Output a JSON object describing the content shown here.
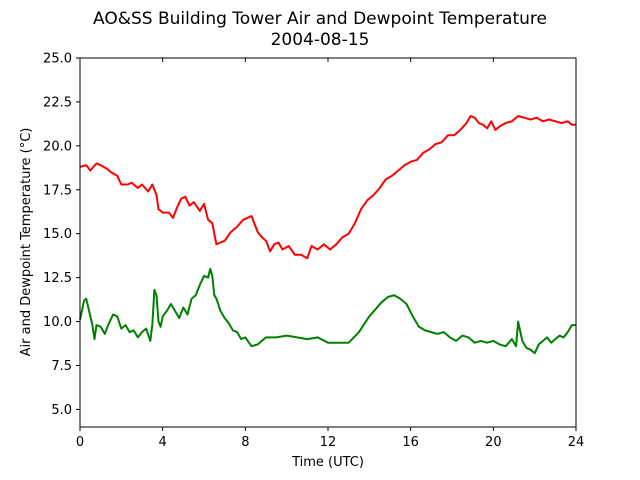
{
  "chart_data": {
    "type": "line",
    "title": "AO&SS Building Tower Air and Dewpoint Temperature",
    "subtitle": "2004-08-15",
    "xlabel": "Time (UTC)",
    "ylabel": "Air and Dewpoint Temperature (°C)",
    "xlim": [
      0,
      24
    ],
    "ylim": [
      4.0,
      25.0
    ],
    "x_ticks": [
      0,
      4,
      8,
      12,
      16,
      20,
      24
    ],
    "x_tick_labels": [
      "0",
      "4",
      "8",
      "12",
      "16",
      "20",
      "24"
    ],
    "y_ticks": [
      5.0,
      7.5,
      10.0,
      12.5,
      15.0,
      17.5,
      20.0,
      22.5,
      25.0
    ],
    "y_tick_labels": [
      "5.0",
      "7.5",
      "10.0",
      "12.5",
      "15.0",
      "17.5",
      "20.0",
      "22.5",
      "25.0"
    ],
    "grid": false,
    "legend": "none",
    "series": [
      {
        "color": "#ff0000",
        "x": [
          0,
          0.3,
          0.5,
          0.8,
          1.0,
          1.3,
          1.5,
          1.8,
          2.0,
          2.3,
          2.5,
          2.8,
          3.0,
          3.3,
          3.5,
          3.7,
          3.8,
          4.0,
          4.3,
          4.5,
          4.7,
          4.9,
          5.1,
          5.3,
          5.5,
          5.8,
          6.0,
          6.2,
          6.4,
          6.6,
          6.8,
          7.0,
          7.3,
          7.6,
          7.9,
          8.1,
          8.3,
          8.6,
          8.8,
          9.0,
          9.2,
          9.4,
          9.6,
          9.8,
          10.1,
          10.4,
          10.7,
          11.0,
          11.2,
          11.5,
          11.8,
          12.1,
          12.4,
          12.7,
          13.0,
          13.3,
          13.6,
          13.9,
          14.2,
          14.5,
          14.8,
          15.1,
          15.4,
          15.7,
          16.0,
          16.3,
          16.6,
          16.9,
          17.2,
          17.5,
          17.8,
          18.1,
          18.4,
          18.7,
          18.9,
          19.1,
          19.3,
          19.5,
          19.7,
          19.9,
          20.1,
          20.3,
          20.6,
          20.9,
          21.2,
          21.5,
          21.8,
          22.1,
          22.4,
          22.7,
          23.0,
          23.3,
          23.6,
          23.8,
          24.0
        ],
        "values": [
          18.8,
          18.9,
          18.6,
          19.0,
          18.9,
          18.7,
          18.5,
          18.3,
          17.8,
          17.8,
          17.9,
          17.6,
          17.8,
          17.4,
          17.8,
          17.2,
          16.4,
          16.2,
          16.2,
          15.9,
          16.5,
          17.0,
          17.1,
          16.6,
          16.8,
          16.3,
          16.7,
          15.8,
          15.6,
          14.4,
          14.5,
          14.6,
          15.1,
          15.4,
          15.8,
          15.9,
          16.0,
          15.1,
          14.8,
          14.6,
          14.0,
          14.4,
          14.5,
          14.1,
          14.3,
          13.8,
          13.8,
          13.6,
          14.3,
          14.1,
          14.4,
          14.1,
          14.4,
          14.8,
          15.0,
          15.6,
          16.4,
          16.9,
          17.2,
          17.6,
          18.1,
          18.3,
          18.6,
          18.9,
          19.1,
          19.2,
          19.6,
          19.8,
          20.1,
          20.2,
          20.6,
          20.6,
          20.9,
          21.3,
          21.7,
          21.6,
          21.3,
          21.2,
          21.0,
          21.4,
          20.9,
          21.1,
          21.3,
          21.4,
          21.7,
          21.6,
          21.5,
          21.6,
          21.4,
          21.5,
          21.4,
          21.3,
          21.4,
          21.2,
          21.2
        ]
      },
      {
        "color": "#008000",
        "x": [
          0,
          0.2,
          0.3,
          0.4,
          0.6,
          0.7,
          0.8,
          1.0,
          1.2,
          1.4,
          1.6,
          1.8,
          2.0,
          2.2,
          2.4,
          2.6,
          2.8,
          3.0,
          3.2,
          3.4,
          3.5,
          3.6,
          3.7,
          3.8,
          3.9,
          4.0,
          4.2,
          4.4,
          4.6,
          4.8,
          5.0,
          5.2,
          5.4,
          5.6,
          5.8,
          6.0,
          6.2,
          6.3,
          6.4,
          6.5,
          6.6,
          6.8,
          7.0,
          7.2,
          7.4,
          7.6,
          7.8,
          8.0,
          8.3,
          8.6,
          9.0,
          9.5,
          10.0,
          10.5,
          11.0,
          11.5,
          12.0,
          12.5,
          13.0,
          13.5,
          14.0,
          14.3,
          14.6,
          14.9,
          15.2,
          15.5,
          15.8,
          16.1,
          16.4,
          16.7,
          17.0,
          17.3,
          17.6,
          17.9,
          18.2,
          18.5,
          18.8,
          19.1,
          19.4,
          19.7,
          20.0,
          20.3,
          20.6,
          20.9,
          21.1,
          21.2,
          21.4,
          21.6,
          21.8,
          22.0,
          22.2,
          22.4,
          22.6,
          22.8,
          23.0,
          23.2,
          23.4,
          23.6,
          23.8,
          24.0
        ],
        "values": [
          10.1,
          11.2,
          11.3,
          10.8,
          9.8,
          9.0,
          9.8,
          9.7,
          9.3,
          9.9,
          10.4,
          10.3,
          9.6,
          9.8,
          9.4,
          9.5,
          9.1,
          9.4,
          9.6,
          8.9,
          9.8,
          11.8,
          11.5,
          10.0,
          9.7,
          10.3,
          10.6,
          11.0,
          10.6,
          10.2,
          10.8,
          10.4,
          11.3,
          11.5,
          12.1,
          12.6,
          12.5,
          13.0,
          12.6,
          11.5,
          11.3,
          10.6,
          10.2,
          9.9,
          9.5,
          9.4,
          9.0,
          9.1,
          8.6,
          8.7,
          9.1,
          9.1,
          9.2,
          9.1,
          9.0,
          9.1,
          8.8,
          8.8,
          8.8,
          9.4,
          10.3,
          10.7,
          11.1,
          11.4,
          11.5,
          11.3,
          11.0,
          10.3,
          9.7,
          9.5,
          9.4,
          9.3,
          9.4,
          9.1,
          8.9,
          9.2,
          9.1,
          8.8,
          8.9,
          8.8,
          8.9,
          8.7,
          8.6,
          9.0,
          8.6,
          10.0,
          8.9,
          8.5,
          8.4,
          8.2,
          8.7,
          8.9,
          9.1,
          8.8,
          9.0,
          9.2,
          9.1,
          9.4,
          9.8,
          9.8
        ]
      }
    ]
  }
}
